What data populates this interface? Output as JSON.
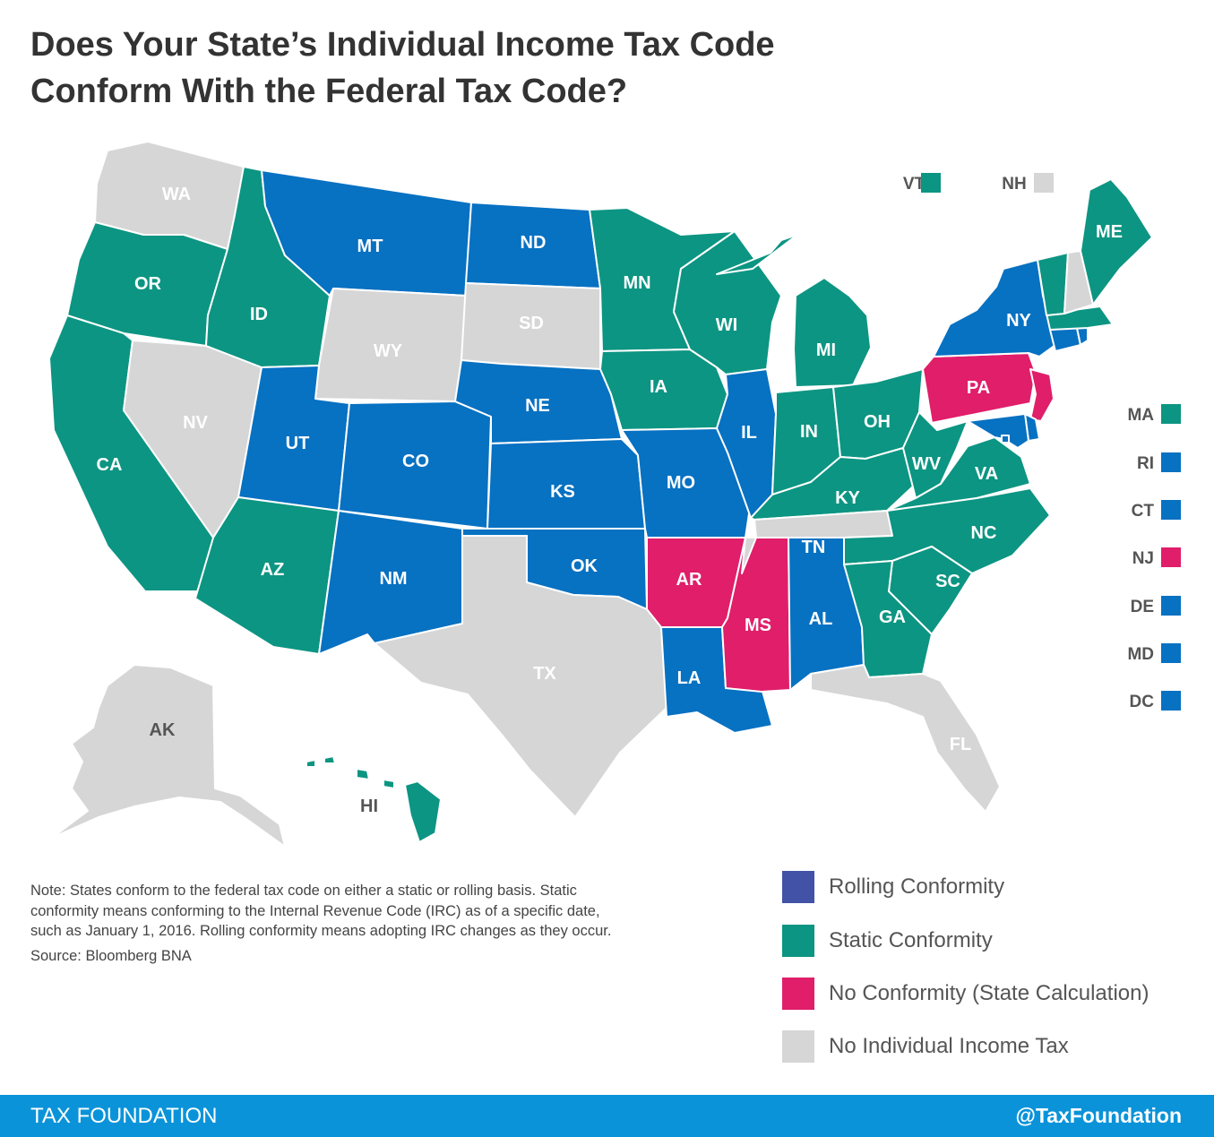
{
  "title": {
    "line1": "Does Your State’s Individual Income Tax Code",
    "line2": "Conform With the Federal Tax Code?"
  },
  "colors": {
    "rolling_map": "#0771c2",
    "static": "#0c9582",
    "none_state_calc": "#e01e6a",
    "no_income_tax": "#d6d6d6",
    "rolling_legend": "#4252a6",
    "footer": "#0a93d9"
  },
  "states": {
    "WA": "no_income_tax",
    "OR": "static",
    "CA": "static",
    "NV": "no_income_tax",
    "ID": "static",
    "MT": "rolling",
    "WY": "no_income_tax",
    "UT": "rolling",
    "AZ": "static",
    "CO": "rolling",
    "NM": "rolling",
    "ND": "rolling",
    "SD": "no_income_tax",
    "NE": "rolling",
    "KS": "rolling",
    "OK": "rolling",
    "TX": "no_income_tax",
    "MN": "static",
    "IA": "static",
    "MO": "rolling",
    "AR": "none_state_calc",
    "LA": "rolling",
    "WI": "static",
    "IL": "rolling",
    "MS": "none_state_calc",
    "MI": "static",
    "IN": "static",
    "KY": "static",
    "TN": "no_income_tax",
    "AL": "rolling",
    "OH": "static",
    "WV": "static",
    "VA": "static",
    "NC": "static",
    "SC": "static",
    "GA": "static",
    "FL": "no_income_tax",
    "PA": "none_state_calc",
    "NY": "rolling",
    "ME": "static",
    "AK": "no_income_tax",
    "HI": "static",
    "VT": "static",
    "NH": "no_income_tax",
    "MA": "static",
    "RI": "rolling",
    "CT": "rolling",
    "NJ": "none_state_calc",
    "DE": "rolling",
    "MD": "rolling",
    "DC": "rolling"
  },
  "callouts": {
    "top": [
      "VT",
      "NH"
    ],
    "right": [
      "MA",
      "RI",
      "CT",
      "NJ",
      "DE",
      "MD",
      "DC"
    ]
  },
  "note": {
    "line1": "Note: States conform to the federal tax code on either a static or rolling basis. Static",
    "line2": "conformity means conforming to the Internal Revenue Code (IRC) as of a specific date,",
    "line3": "such as January 1, 2016. Rolling conformity means adopting IRC changes as they occur.",
    "source": "Source:  Bloomberg BNA"
  },
  "legend": [
    {
      "key": "rolling",
      "label": "Rolling Conformity"
    },
    {
      "key": "static",
      "label": "Static Conformity"
    },
    {
      "key": "none_state_calc",
      "label": "No Conformity (State Calculation)"
    },
    {
      "key": "no_income_tax",
      "label": "No Individual Income Tax"
    }
  ],
  "footer": {
    "brand": "TAX FOUNDATION",
    "handle": "@TaxFoundation"
  }
}
